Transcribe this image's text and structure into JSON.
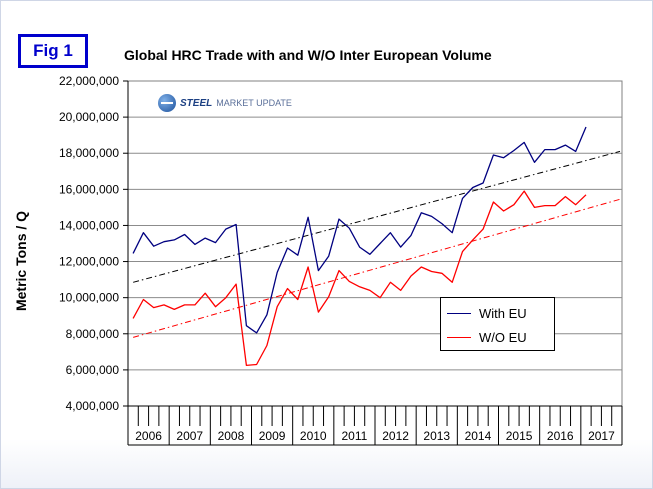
{
  "figure_label": "Fig 1",
  "logo": {
    "word1": "STEEL",
    "word2": "MARKET UPDATE"
  },
  "colors": {
    "with_eu": "#000080",
    "wo_eu": "#ff0000",
    "trend_with": "#000000",
    "trend_wo": "#ff0000"
  },
  "chart_data": {
    "type": "line",
    "title": "Global HRC Trade with and W/O Inter European Volume",
    "xlabel": "",
    "ylabel": "Metric Tons / Q",
    "ylim": [
      4000000,
      22000000
    ],
    "yticks": [
      4000000,
      6000000,
      8000000,
      10000000,
      12000000,
      14000000,
      16000000,
      18000000,
      20000000,
      22000000
    ],
    "ytick_labels": [
      "4,000,000",
      "6,000,000",
      "8,000,000",
      "10,000,000",
      "12,000,000",
      "14,000,000",
      "16,000,000",
      "18,000,000",
      "20,000,000",
      "22,000,000"
    ],
    "years": [
      "2006",
      "2007",
      "2008",
      "2009",
      "2010",
      "2011",
      "2012",
      "2013",
      "2014",
      "2015",
      "2016",
      "2017"
    ],
    "quarters_per_year": 4,
    "grid": "horizontal",
    "legend_position": "lower-right",
    "series": [
      {
        "name": "With EU",
        "values": [
          12450000,
          13600000,
          12850000,
          13100000,
          13200000,
          13500000,
          12950000,
          13300000,
          13050000,
          13800000,
          14050000,
          8450000,
          8050000,
          9050000,
          11400000,
          12750000,
          12350000,
          14450000,
          11500000,
          12300000,
          14350000,
          13850000,
          12800000,
          12400000,
          13000000,
          13600000,
          12800000,
          13450000,
          14700000,
          14500000,
          14100000,
          13600000,
          15500000,
          16100000,
          16350000,
          17900000,
          17750000,
          18150000,
          18600000,
          17500000,
          18200000,
          18200000,
          18450000,
          18100000,
          19450000
        ]
      },
      {
        "name": "W/O EU",
        "values": [
          8850000,
          9900000,
          9450000,
          9600000,
          9350000,
          9600000,
          9600000,
          10250000,
          9500000,
          10000000,
          10750000,
          6250000,
          6300000,
          7350000,
          9500000,
          10500000,
          9900000,
          11700000,
          9200000,
          10050000,
          11500000,
          10900000,
          10600000,
          10400000,
          10000000,
          10850000,
          10400000,
          11200000,
          11700000,
          11450000,
          11350000,
          10850000,
          12550000,
          13200000,
          13800000,
          15300000,
          14800000,
          15150000,
          15900000,
          15000000,
          15100000,
          15100000,
          15600000,
          15150000,
          15700000
        ]
      }
    ],
    "trendlines": [
      {
        "series": "With EU",
        "start": 10850000,
        "end": 18100000
      },
      {
        "series": "W/O EU",
        "start": 7800000,
        "end": 15450000
      }
    ]
  }
}
